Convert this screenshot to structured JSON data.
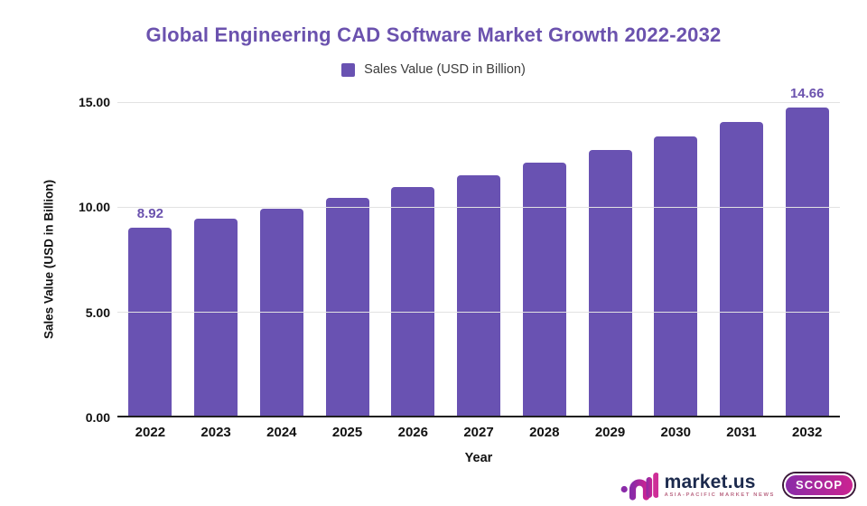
{
  "header": {
    "title": "Global Engineering CAD Software Market Growth 2022-2032"
  },
  "legend": {
    "label": "Sales Value (USD in Billion)",
    "swatch_color": "#6952b2"
  },
  "chart_data": {
    "type": "bar",
    "title": "Global Engineering CAD Software Market Growth 2022-2032",
    "xlabel": "Year",
    "ylabel": "Sales Value (USD in Billion)",
    "legend_entries": [
      "Sales Value (USD in Billion)"
    ],
    "legend_position": "top-center",
    "grid": "horizontal",
    "categories": [
      "2022",
      "2023",
      "2024",
      "2025",
      "2026",
      "2027",
      "2028",
      "2029",
      "2030",
      "2031",
      "2032"
    ],
    "values": [
      8.92,
      9.37,
      9.85,
      10.35,
      10.88,
      11.43,
      12.02,
      12.63,
      13.27,
      13.95,
      14.66
    ],
    "data_labels": [
      "8.92",
      "",
      "",
      "",
      "",
      "",
      "",
      "",
      "",
      "",
      "14.66"
    ],
    "ylim": [
      0,
      15
    ],
    "yticks": [
      0,
      5,
      10,
      15
    ],
    "ytick_labels": [
      "0.00",
      "5.00",
      "10.00",
      "15.00"
    ],
    "bar_color": "#6952b2"
  },
  "footer": {
    "brand": "market.us",
    "tagline": "ASIA-PACIFIC MARKET NEWS",
    "badge": "SCOOP"
  },
  "colors": {
    "accent_purple": "#6952b2",
    "title_purple": "#6b52ae",
    "axis_text": "#111111",
    "gridline": "#e2e2e2",
    "baseline": "#1f1f1f",
    "brand_navy": "#1c2a4d",
    "badge_gradient_start": "#8a2ba8",
    "badge_gradient_end": "#cb2391",
    "tagline_pink": "#bb6a85"
  }
}
